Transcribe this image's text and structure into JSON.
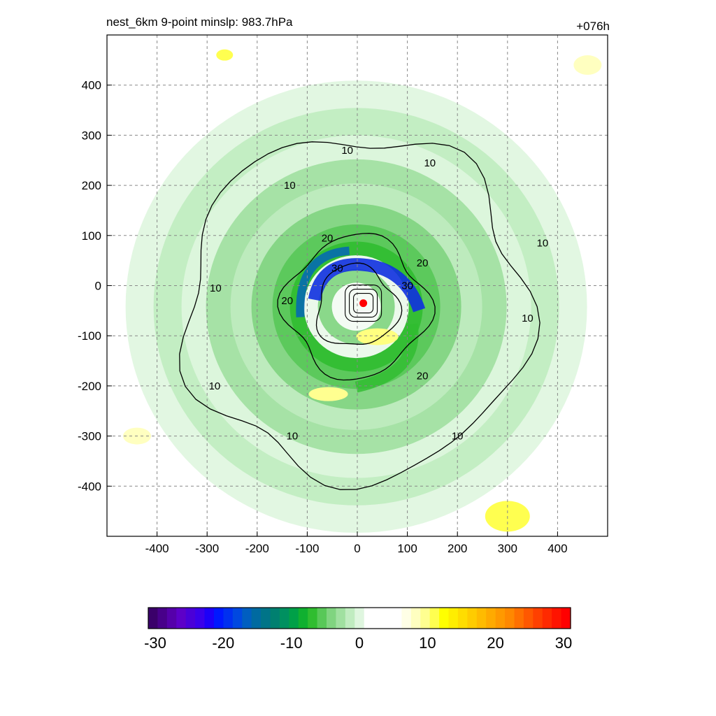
{
  "header": {
    "title": "nest_6km  9-point minslp: 983.7hPa",
    "forecast_hour": "+076h"
  },
  "chart_data": {
    "type": "heatmap",
    "description_of_fields": "filled color field with black contour overlay, centered on a cyclone",
    "xlim": [
      -500,
      500
    ],
    "ylim": [
      -500,
      500
    ],
    "x_ticks": [
      -400,
      -300,
      -200,
      -100,
      0,
      100,
      200,
      300,
      400
    ],
    "y_ticks": [
      400,
      300,
      200,
      100,
      0,
      -100,
      -200,
      -300,
      -400
    ],
    "grid": true,
    "center_marker": {
      "x": 12,
      "y": -35,
      "color": "#ff0000"
    },
    "contours": {
      "levels": [
        10,
        20,
        30
      ],
      "labels": [
        {
          "text": "10",
          "x": -20,
          "y": 270
        },
        {
          "text": "10",
          "x": 145,
          "y": 245
        },
        {
          "text": "10",
          "x": -135,
          "y": 200
        },
        {
          "text": "10",
          "x": 370,
          "y": 85
        },
        {
          "text": "10",
          "x": -283,
          "y": -5
        },
        {
          "text": "10",
          "x": 340,
          "y": -65
        },
        {
          "text": "10",
          "x": -285,
          "y": -200
        },
        {
          "text": "10",
          "x": -130,
          "y": -300
        },
        {
          "text": "10",
          "x": 200,
          "y": -300
        },
        {
          "text": "20",
          "x": -60,
          "y": 95
        },
        {
          "text": "20",
          "x": 130,
          "y": 45
        },
        {
          "text": "20",
          "x": -140,
          "y": -30
        },
        {
          "text": "20",
          "x": 130,
          "y": -180
        },
        {
          "text": "30",
          "x": -40,
          "y": 35
        },
        {
          "text": "30",
          "x": 100,
          "y": 0
        }
      ]
    },
    "colorbar": {
      "min": -30,
      "max": 30,
      "tick_labels": [
        "-30",
        "-20",
        "-10",
        "0",
        "10",
        "20",
        "30"
      ],
      "colors": [
        "#3a006a",
        "#48008a",
        "#5500aa",
        "#5d00c8",
        "#4a00d8",
        "#3a00ea",
        "#1d00f8",
        "#0018ff",
        "#0030f0",
        "#0048e0",
        "#005ec0",
        "#006aa0",
        "#007488",
        "#008070",
        "#009060",
        "#00a048",
        "#10b030",
        "#30bd30",
        "#58c858",
        "#80d480",
        "#a0e0a0",
        "#c0ecc0",
        "#dff6df",
        "#ffffff",
        "#ffffff",
        "#ffffff",
        "#ffffff",
        "#ffffe6",
        "#ffffc0",
        "#ffff90",
        "#ffff50",
        "#ffff00",
        "#ffee00",
        "#ffdd00",
        "#ffcc00",
        "#ffbb00",
        "#ffaa00",
        "#ff9900",
        "#ff8800",
        "#ff7000",
        "#ff5800",
        "#ff4000",
        "#ff2a00",
        "#ff1400",
        "#ff0000"
      ]
    }
  }
}
